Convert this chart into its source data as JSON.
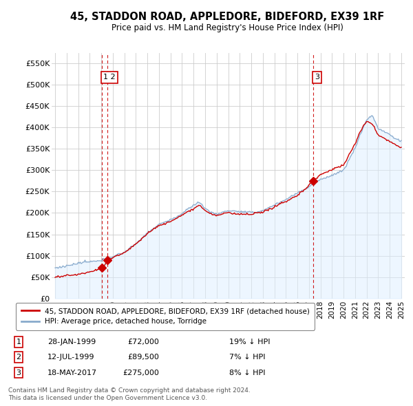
{
  "title": "45, STADDON ROAD, APPLEDORE, BIDEFORD, EX39 1RF",
  "subtitle": "Price paid vs. HM Land Registry's House Price Index (HPI)",
  "ylim": [
    0,
    575000
  ],
  "yticks": [
    0,
    50000,
    100000,
    150000,
    200000,
    250000,
    300000,
    350000,
    400000,
    450000,
    500000,
    550000
  ],
  "ytick_labels": [
    "£0",
    "£50K",
    "£100K",
    "£150K",
    "£200K",
    "£250K",
    "£300K",
    "£350K",
    "£400K",
    "£450K",
    "£500K",
    "£550K"
  ],
  "legend_line1": "45, STADDON ROAD, APPLEDORE, BIDEFORD, EX39 1RF (detached house)",
  "legend_line2": "HPI: Average price, detached house, Torridge",
  "sale1_label": "1",
  "sale1_date": "28-JAN-1999",
  "sale1_price": "£72,000",
  "sale1_hpi": "19% ↓ HPI",
  "sale2_label": "2",
  "sale2_date": "12-JUL-1999",
  "sale2_price": "£89,500",
  "sale2_hpi": "7% ↓ HPI",
  "sale3_label": "3",
  "sale3_date": "18-MAY-2017",
  "sale3_price": "£275,000",
  "sale3_hpi": "8% ↓ HPI",
  "footnote1": "Contains HM Land Registry data © Crown copyright and database right 2024.",
  "footnote2": "This data is licensed under the Open Government Licence v3.0.",
  "sale_color": "#cc0000",
  "hpi_color": "#88aacc",
  "hpi_fill_color": "#ddeeff",
  "grid_color": "#cccccc",
  "background_color": "#ffffff",
  "sale1_x": 1999.08,
  "sale1_y": 72000,
  "sale2_x": 1999.54,
  "sale2_y": 89500,
  "sale3_x": 2017.38,
  "sale3_y": 275000,
  "vline1_x": 1999.08,
  "vline2_x": 1999.54,
  "vline3_x": 2017.38,
  "xmin": 1994.7,
  "xmax": 2025.3
}
